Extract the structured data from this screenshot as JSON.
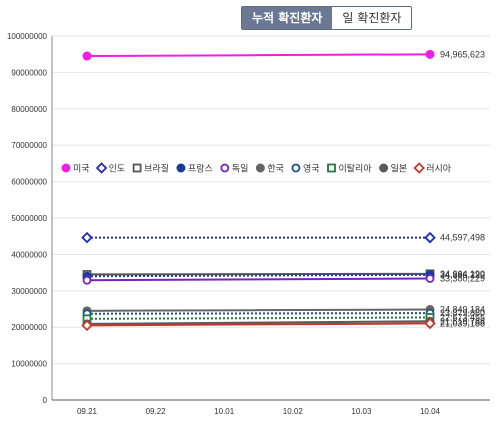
{
  "toggle": {
    "cumulative_label": "누적 확진환자",
    "daily_label": "일 확진환자",
    "active": "cumulative"
  },
  "chart_data": {
    "type": "line",
    "categories": [
      "09.21",
      "09.22",
      "10.01",
      "10.02",
      "10.03",
      "10.04"
    ],
    "ylim": [
      0,
      100000000
    ],
    "yticks": [
      0,
      10000000,
      20000000,
      30000000,
      40000000,
      50000000,
      60000000,
      70000000,
      80000000,
      90000000,
      100000000
    ],
    "ytick_labels": [
      "0",
      "10000000",
      "20000000",
      "30000000",
      "40000000",
      "50000000",
      "60000000",
      "70000000",
      "80000000",
      "90000000",
      "100000000"
    ],
    "grid": true,
    "legend_position": "middle",
    "series": [
      {
        "name": "미국",
        "color": "#f21ce8",
        "marker": "filled-circle",
        "dash": "solid",
        "start": 94500000,
        "end": 94965623,
        "end_label": "94,965,623"
      },
      {
        "name": "인도",
        "color": "#1f27b5",
        "marker": "hollow-diamond",
        "dash": "dotted",
        "start": 44600000,
        "end": 44597498,
        "end_label": "44,597,498"
      },
      {
        "name": "브라질",
        "color": "#555555",
        "marker": "hollow-square",
        "dash": "solid",
        "start": 34500000,
        "end": 34664190,
        "end_label": "34,664,190"
      },
      {
        "name": "프랑스",
        "color": "#1b3a9c",
        "marker": "filled-circle",
        "dash": "dotted",
        "start": 34000000,
        "end": 34386229,
        "end_label": "34,386,229"
      },
      {
        "name": "독일",
        "color": "#7a1fc2",
        "marker": "hollow-circle",
        "dash": "solid",
        "start": 32900000,
        "end": 33380229,
        "end_label": "33,380,229"
      },
      {
        "name": "한국",
        "color": "#666666",
        "marker": "filled-circle",
        "dash": "solid",
        "start": 24500000,
        "end": 24849184,
        "end_label": "24,849,184"
      },
      {
        "name": "영국",
        "color": "#1d4f8a",
        "marker": "hollow-circle",
        "dash": "dotted",
        "start": 23700000,
        "end": 23879860,
        "end_label": "23,879,860"
      },
      {
        "name": "이탈리아",
        "color": "#1f7a3c",
        "marker": "hollow-square",
        "dash": "dotted",
        "start": 22300000,
        "end": 22673455,
        "end_label": "22,673,455"
      },
      {
        "name": "일본",
        "color": "#5a5a5a",
        "marker": "filled-circle",
        "dash": "solid",
        "start": 20900000,
        "end": 21619788,
        "end_label": "21,619,788"
      },
      {
        "name": "러시아",
        "color": "#c0392b",
        "marker": "hollow-diamond",
        "dash": "solid",
        "start": 20500000,
        "end": 21039188,
        "end_label": "21,039,188"
      }
    ]
  }
}
